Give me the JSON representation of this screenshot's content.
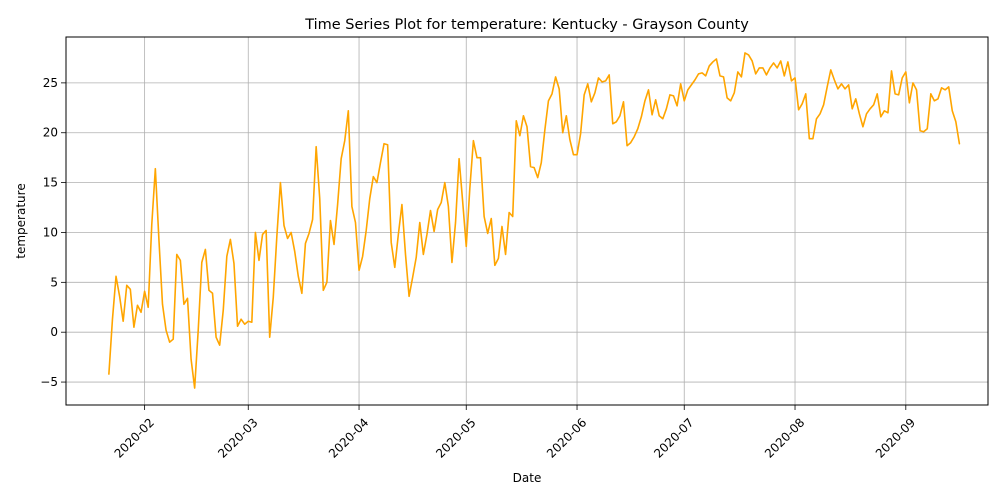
{
  "chart_data": {
    "type": "line",
    "title": "Time Series Plot for temperature: Kentucky - Grayson County",
    "xlabel": "Date",
    "ylabel": "temperature",
    "grid": true,
    "line_color": "#FFA500",
    "xlim": [
      "2020-01-10",
      "2020-09-24"
    ],
    "ylim": [
      -7.3,
      29.6
    ],
    "x_ticks": [
      "2020-02-01",
      "2020-03-01",
      "2020-04-01",
      "2020-05-01",
      "2020-06-01",
      "2020-07-01",
      "2020-08-01",
      "2020-09-01"
    ],
    "x_tick_labels": [
      "2020-02",
      "2020-03",
      "2020-04",
      "2020-05",
      "2020-06",
      "2020-07",
      "2020-08",
      "2020-09"
    ],
    "y_ticks": [
      -5,
      0,
      5,
      10,
      15,
      20,
      25
    ],
    "series": [
      {
        "x": [
          "2020-01-22",
          "2020-01-23",
          "2020-01-24",
          "2020-01-25",
          "2020-01-26",
          "2020-01-27",
          "2020-01-28",
          "2020-01-29",
          "2020-01-30",
          "2020-01-31",
          "2020-02-01",
          "2020-02-02",
          "2020-02-03",
          "2020-02-04",
          "2020-02-05",
          "2020-02-06",
          "2020-02-07",
          "2020-02-08",
          "2020-02-09",
          "2020-02-10",
          "2020-02-11",
          "2020-02-12",
          "2020-02-13",
          "2020-02-14",
          "2020-02-15",
          "2020-02-16",
          "2020-02-17",
          "2020-02-18",
          "2020-02-19",
          "2020-02-20",
          "2020-02-21",
          "2020-02-22",
          "2020-02-23",
          "2020-02-24",
          "2020-02-25",
          "2020-02-26",
          "2020-02-27",
          "2020-02-28",
          "2020-02-29",
          "2020-03-01",
          "2020-03-02",
          "2020-03-03",
          "2020-03-04",
          "2020-03-05",
          "2020-03-06",
          "2020-03-07",
          "2020-03-08",
          "2020-03-09",
          "2020-03-10",
          "2020-03-11",
          "2020-03-12",
          "2020-03-13",
          "2020-03-14",
          "2020-03-15",
          "2020-03-16",
          "2020-03-17",
          "2020-03-18",
          "2020-03-19",
          "2020-03-20",
          "2020-03-21",
          "2020-03-22",
          "2020-03-23",
          "2020-03-24",
          "2020-03-25",
          "2020-03-26",
          "2020-03-27",
          "2020-03-28",
          "2020-03-29",
          "2020-03-30",
          "2020-03-31",
          "2020-04-01",
          "2020-04-02",
          "2020-04-03",
          "2020-04-04",
          "2020-04-05",
          "2020-04-06",
          "2020-04-07",
          "2020-04-08",
          "2020-04-09",
          "2020-04-10",
          "2020-04-11",
          "2020-04-12",
          "2020-04-13",
          "2020-04-14",
          "2020-04-15",
          "2020-04-16",
          "2020-04-17",
          "2020-04-18",
          "2020-04-19",
          "2020-04-20",
          "2020-04-21",
          "2020-04-22",
          "2020-04-23",
          "2020-04-24",
          "2020-04-25",
          "2020-04-26",
          "2020-04-27",
          "2020-04-28",
          "2020-04-29",
          "2020-04-30",
          "2020-05-01",
          "2020-05-02",
          "2020-05-03",
          "2020-05-04",
          "2020-05-05",
          "2020-05-06",
          "2020-05-07",
          "2020-05-08",
          "2020-05-09",
          "2020-05-10",
          "2020-05-11",
          "2020-05-12",
          "2020-05-13",
          "2020-05-14",
          "2020-05-15",
          "2020-05-16",
          "2020-05-17",
          "2020-05-18",
          "2020-05-19",
          "2020-05-20",
          "2020-05-21",
          "2020-05-22",
          "2020-05-23",
          "2020-05-24",
          "2020-05-25",
          "2020-05-26",
          "2020-05-27",
          "2020-05-28",
          "2020-05-29",
          "2020-05-30",
          "2020-05-31",
          "2020-06-01",
          "2020-06-02",
          "2020-06-03",
          "2020-06-04",
          "2020-06-05",
          "2020-06-06",
          "2020-06-07",
          "2020-06-08",
          "2020-06-09",
          "2020-06-10",
          "2020-06-11",
          "2020-06-12",
          "2020-06-13",
          "2020-06-14",
          "2020-06-15",
          "2020-06-16",
          "2020-06-17",
          "2020-06-18",
          "2020-06-19",
          "2020-06-20",
          "2020-06-21",
          "2020-06-22",
          "2020-06-23",
          "2020-06-24",
          "2020-06-25",
          "2020-06-26",
          "2020-06-27",
          "2020-06-28",
          "2020-06-29",
          "2020-06-30",
          "2020-07-01",
          "2020-07-02",
          "2020-07-03",
          "2020-07-04",
          "2020-07-05",
          "2020-07-06",
          "2020-07-07",
          "2020-07-08",
          "2020-07-09",
          "2020-07-10",
          "2020-07-11",
          "2020-07-12",
          "2020-07-13",
          "2020-07-14",
          "2020-07-15",
          "2020-07-16",
          "2020-07-17",
          "2020-07-18",
          "2020-07-19",
          "2020-07-20",
          "2020-07-21",
          "2020-07-22",
          "2020-07-23",
          "2020-07-24",
          "2020-07-25",
          "2020-07-26",
          "2020-07-27",
          "2020-07-28",
          "2020-07-29",
          "2020-07-30",
          "2020-07-31",
          "2020-08-01",
          "2020-08-02",
          "2020-08-03",
          "2020-08-04",
          "2020-08-05",
          "2020-08-06",
          "2020-08-07",
          "2020-08-08",
          "2020-08-09",
          "2020-08-10",
          "2020-08-11",
          "2020-08-12",
          "2020-08-13",
          "2020-08-14",
          "2020-08-15",
          "2020-08-16",
          "2020-08-17",
          "2020-08-18",
          "2020-08-19",
          "2020-08-20",
          "2020-08-21",
          "2020-08-22",
          "2020-08-23",
          "2020-08-24",
          "2020-08-25",
          "2020-08-26",
          "2020-08-27",
          "2020-08-28",
          "2020-08-29",
          "2020-08-30",
          "2020-08-31",
          "2020-09-01",
          "2020-09-02",
          "2020-09-03",
          "2020-09-04",
          "2020-09-05",
          "2020-09-06",
          "2020-09-07",
          "2020-09-08",
          "2020-09-09",
          "2020-09-10",
          "2020-09-11",
          "2020-09-12",
          "2020-09-13",
          "2020-09-14",
          "2020-09-15",
          "2020-09-16"
        ],
        "values": [
          -4.2,
          1.3,
          5.6,
          3.6,
          1.1,
          4.7,
          4.3,
          0.5,
          2.7,
          2.0,
          4.1,
          2.5,
          10.8,
          16.4,
          9.3,
          2.8,
          0.2,
          -1.0,
          -0.7,
          7.8,
          7.2,
          2.8,
          3.4,
          -2.7,
          -5.6,
          0.2,
          7.0,
          8.3,
          4.2,
          3.9,
          -0.5,
          -1.3,
          2.2,
          7.6,
          9.3,
          6.9,
          0.6,
          1.3,
          0.8,
          1.1,
          1.0,
          10.0,
          7.2,
          9.8,
          10.2,
          -0.5,
          3.5,
          9.6,
          15.0,
          10.7,
          9.4,
          10.0,
          8.1,
          5.6,
          3.9,
          8.9,
          9.9,
          11.3,
          18.6,
          13.4,
          4.2,
          5.0,
          11.2,
          8.8,
          12.8,
          17.4,
          19.2,
          22.2,
          12.6,
          11.0,
          6.2,
          7.6,
          10.2,
          13.4,
          15.6,
          15.0,
          17.0,
          18.9,
          18.8,
          9.0,
          6.5,
          9.8,
          12.8,
          7.8,
          3.6,
          5.5,
          7.5,
          11.0,
          7.8,
          9.8,
          12.2,
          10.1,
          12.3,
          13.0,
          15.0,
          12.6,
          7.0,
          11.0,
          17.4,
          13.1,
          8.6,
          14.4,
          19.2,
          17.5,
          17.5,
          11.6,
          9.9,
          11.4,
          6.7,
          7.4,
          10.6,
          7.8,
          12.0,
          11.6,
          21.2,
          19.7,
          21.7,
          20.6,
          16.6,
          16.5,
          15.5,
          17.0,
          20.3,
          23.2,
          23.9,
          25.6,
          24.4,
          20.0,
          21.7,
          19.3,
          17.8,
          17.8,
          19.9,
          23.8,
          24.9,
          23.1,
          24.0,
          25.5,
          25.1,
          25.2,
          25.8,
          20.9,
          21.1,
          21.7,
          23.1,
          18.7,
          19.0,
          19.6,
          20.4,
          21.6,
          23.2,
          24.3,
          21.8,
          23.3,
          21.7,
          21.4,
          22.4,
          23.8,
          23.7,
          22.7,
          24.9,
          23.2,
          24.3,
          24.8,
          25.3,
          25.9,
          26.0,
          25.7,
          26.7,
          27.1,
          27.4,
          25.7,
          25.6,
          23.5,
          23.2,
          24.0,
          26.1,
          25.6,
          28.0,
          27.8,
          27.2,
          25.9,
          26.5,
          26.5,
          25.8,
          26.5,
          27.0,
          26.5,
          27.2,
          25.7,
          27.1,
          25.2,
          25.5,
          22.3,
          22.9,
          23.9,
          19.4,
          19.4,
          21.4,
          21.9,
          22.8,
          24.6,
          26.3,
          25.3,
          24.4,
          24.9,
          24.4,
          24.8,
          22.4,
          23.4,
          21.9,
          20.6,
          21.9,
          22.4,
          22.8,
          23.9,
          21.6,
          22.2,
          22.0,
          26.2,
          23.9,
          23.8,
          25.5,
          26.1,
          23.0,
          25.0,
          24.3,
          20.2,
          20.1,
          20.4,
          23.9,
          23.2,
          23.4,
          24.5,
          24.3,
          24.6,
          22.2,
          21.1,
          18.9
        ]
      }
    ]
  }
}
